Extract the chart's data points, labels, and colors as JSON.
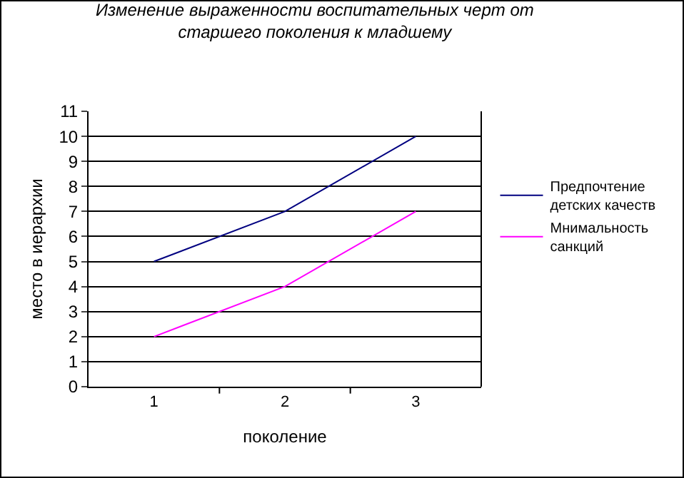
{
  "chart_data": {
    "type": "line",
    "title": "Изменение выраженности воспитательных черт от\nстаршего поколения к младшему",
    "xlabel": "поколение",
    "ylabel": "место в иерархии",
    "categories": [
      "1",
      "2",
      "3"
    ],
    "series": [
      {
        "name": "Предпочтение\nдетских качеств",
        "color": "#000080",
        "values": [
          5,
          7,
          10
        ]
      },
      {
        "name": "Мнимальность\nсанкций",
        "color": "#ff00ff",
        "values": [
          2,
          4,
          7
        ]
      }
    ],
    "ylim": [
      0,
      11
    ],
    "yticks": [
      0,
      1,
      2,
      3,
      4,
      5,
      6,
      7,
      8,
      9,
      10,
      11
    ],
    "grid": "y",
    "legend": "right",
    "marker": "none",
    "line_style": "solid"
  }
}
